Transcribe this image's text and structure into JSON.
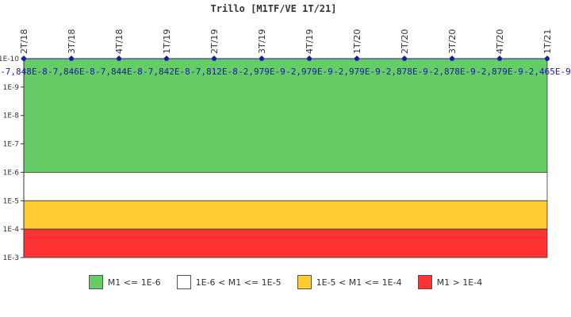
{
  "chart_data": {
    "type": "line",
    "title": "Trillo [M1TF/VE 1T/21]",
    "xlabel": "",
    "ylabel": "",
    "y_scale": "log",
    "y_reversed": true,
    "ylim": [
      1e-10,
      0.001
    ],
    "y_ticks": [
      {
        "value": 1e-10,
        "label": "1E-10"
      },
      {
        "value": 1e-09,
        "label": "1E-9"
      },
      {
        "value": 1e-08,
        "label": "1E-8"
      },
      {
        "value": 1e-07,
        "label": "1E-7"
      },
      {
        "value": 1e-06,
        "label": "1E-6"
      },
      {
        "value": 1e-05,
        "label": "1E-5"
      },
      {
        "value": 0.0001,
        "label": "1E-4"
      },
      {
        "value": 0.001,
        "label": "1E-3"
      }
    ],
    "categories": [
      "2T/18",
      "3T/18",
      "4T/18",
      "1T/19",
      "2T/19",
      "3T/19",
      "4T/19",
      "1T/20",
      "2T/20",
      "3T/20",
      "4T/20",
      "1T/21"
    ],
    "data_labels": [
      "-7,848E-8",
      "-7,846E-8",
      "-7,844E-8",
      "-7,842E-8",
      "-7,812E-8",
      "-2,979E-9",
      "-2,979E-9",
      "-2,979E-9",
      "-2,878E-9",
      "-2,878E-9",
      "-2,879E-9",
      "-2,465E-9"
    ],
    "bands": [
      {
        "name": "M1 <= 1E-6",
        "from": 1e-10,
        "to": 1e-06,
        "color": "#66cc66"
      },
      {
        "name": "1E-6 < M1 <= 1E-5",
        "from": 1e-06,
        "to": 1e-05,
        "color": "#ffffff"
      },
      {
        "name": "1E-5 < M1 <= 1E-4",
        "from": 1e-05,
        "to": 0.0001,
        "color": "#ffcc33"
      },
      {
        "name": "M1 > 1E-4",
        "from": 0.0001,
        "to": 0.001,
        "color": "#ff3333"
      }
    ],
    "series_color": "#1a1aa6",
    "grid": false,
    "legend_position": "bottom"
  }
}
